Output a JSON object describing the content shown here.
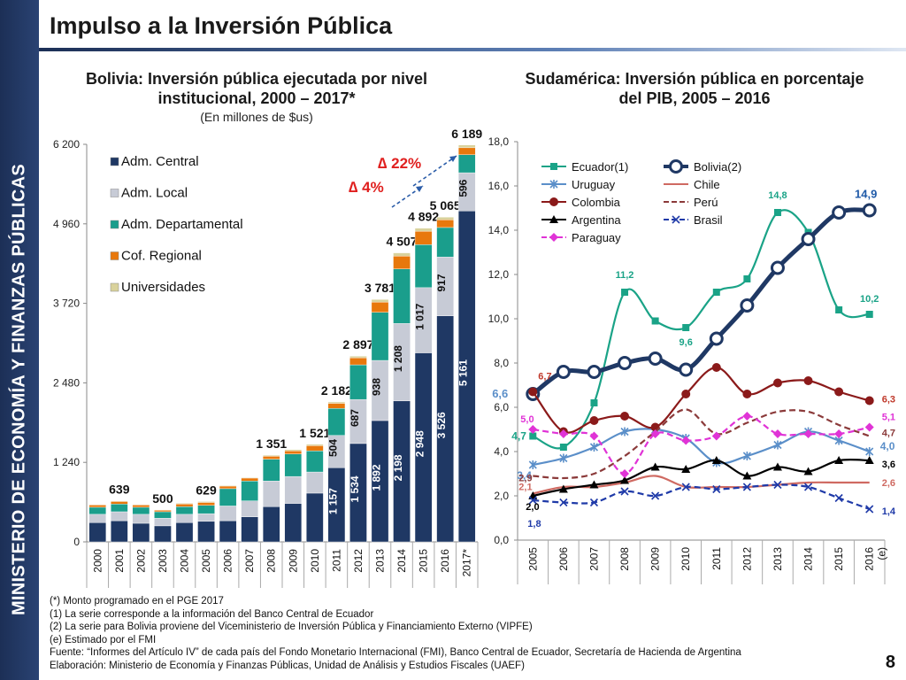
{
  "page": {
    "sidebar_text": "MINISTERIO DE ECONOMÍA Y FINANZAS PÚBLICAS",
    "title": "Impulso a la Inversión Pública",
    "page_number": "8"
  },
  "notes": [
    "(*) Monto programado en el PGE 2017",
    "(1)   La serie corresponde a la información del Banco Central de Ecuador",
    "(2)   La serie para Bolivia proviene del Viceministerio de Inversión Pública y Financiamiento Externo (VIPFE)",
    "(e) Estimado por el FMI",
    "Fuente: “Informes del Artículo IV” de cada país del Fondo Monetario Internacional (FMI), Banco Central de Ecuador, Secretaría de Hacienda de Argentina",
    "Elaboración: Ministerio de Economía y Finanzas Públicas, Unidad de Análisis y Estudios Fiscales (UAEF)"
  ],
  "chart_data": [
    {
      "type": "bar",
      "stacked": true,
      "title": "Bolivia: Inversión pública ejecutada por nivel institucional, 2000 – 2017*",
      "subtitle": "(En millones de $us)",
      "categories": [
        "2000",
        "2001",
        "2002",
        "2003",
        "2004",
        "2005",
        "2006",
        "2007",
        "2008",
        "2009",
        "2010",
        "2011",
        "2012",
        "2013",
        "2014",
        "2015",
        "2016",
        "2017*"
      ],
      "ylim": [
        0,
        6200
      ],
      "yticks": [
        "0",
        "1 240",
        "2 480",
        "3 720",
        "4 960",
        "6 200"
      ],
      "totals": [
        583,
        639,
        584,
        500,
        602,
        629,
        879,
        1005,
        1351,
        1439,
        1521,
        2182,
        2897,
        3781,
        4507,
        4892,
        5065,
        6189
      ],
      "total_labels": [
        null,
        "639",
        null,
        "500",
        null,
        "629",
        null,
        null,
        "1 351",
        null,
        "1 521",
        "2 182",
        "2 897",
        "3 781",
        "4 507",
        "4 892",
        "5 065",
        "6 189"
      ],
      "series": [
        {
          "name": "Adm. Central",
          "color": "#1f3864",
          "values": [
            300,
            330,
            290,
            250,
            300,
            320,
            330,
            390,
            550,
            600,
            760,
            1157,
            1534,
            1892,
            2198,
            2948,
            3526,
            5161
          ],
          "labels": [
            null,
            null,
            null,
            null,
            null,
            null,
            null,
            null,
            null,
            null,
            null,
            "1 157",
            "1 534",
            "1 892",
            "2 198",
            "2 948",
            "3 526",
            "5 161"
          ]
        },
        {
          "name": "Adm. Local",
          "color": "#c7cbd6",
          "values": [
            130,
            140,
            140,
            120,
            130,
            120,
            230,
            250,
            400,
            420,
            330,
            504,
            687,
            938,
            1208,
            1017,
            917,
            596
          ],
          "labels": [
            null,
            null,
            null,
            null,
            null,
            null,
            null,
            null,
            null,
            null,
            null,
            "504",
            "687",
            "938",
            "1 208",
            "1 017",
            "917",
            "596"
          ]
        },
        {
          "name": "Adm. Departamental",
          "color": "#1a9e8c",
          "values": [
            110,
            120,
            110,
            100,
            120,
            130,
            270,
            310,
            340,
            350,
            330,
            420,
            540,
            750,
            850,
            670,
            460,
            280
          ],
          "labels": []
        },
        {
          "name": "Cof. Regional",
          "color": "#e8780c",
          "values": [
            35,
            40,
            35,
            25,
            40,
            45,
            40,
            45,
            45,
            50,
            80,
            80,
            110,
            160,
            200,
            210,
            120,
            110
          ],
          "labels": []
        },
        {
          "name": "Universidades",
          "color": "#d9d29c",
          "values": [
            8,
            9,
            9,
            5,
            12,
            14,
            9,
            10,
            16,
            19,
            21,
            21,
            26,
            41,
            51,
            47,
            42,
            42
          ],
          "labels": []
        }
      ],
      "annotations": [
        "∆ 22%",
        "∆ 4%"
      ]
    },
    {
      "type": "line",
      "title": "Sudamérica: Inversión pública en porcentaje del PIB, 2005 – 2016",
      "x": [
        "2005",
        "2006",
        "2007",
        "2008",
        "2009",
        "2010",
        "2011",
        "2012",
        "2013",
        "2014",
        "2015",
        "2016 (e)"
      ],
      "ylim": [
        0,
        18
      ],
      "yticks": [
        "0,0",
        "2,0",
        "4,0",
        "6,0",
        "8,0",
        "10,0",
        "12,0",
        "14,0",
        "16,0",
        "18,0"
      ],
      "series": [
        {
          "name": "Ecuador(1)",
          "color": "#1aa387",
          "marker": "square",
          "values": [
            4.7,
            4.2,
            6.2,
            11.2,
            9.9,
            9.6,
            11.2,
            11.8,
            14.8,
            13.9,
            10.4,
            10.2
          ]
        },
        {
          "name": "Bolivia(2)",
          "color": "#1f3864",
          "marker": "circle",
          "values": [
            6.6,
            7.6,
            7.6,
            8.0,
            8.2,
            7.7,
            9.1,
            10.6,
            12.3,
            13.6,
            14.8,
            14.9
          ]
        },
        {
          "name": "Uruguay",
          "color": "#5b8fc9",
          "marker": "star",
          "values": [
            3.4,
            3.7,
            4.2,
            4.9,
            5.0,
            4.6,
            3.5,
            3.8,
            4.3,
            4.9,
            4.5,
            4.0
          ]
        },
        {
          "name": "Chile",
          "color": "#cf6a62",
          "marker": "none",
          "values": [
            2.1,
            2.4,
            2.4,
            2.6,
            2.9,
            2.4,
            2.4,
            2.4,
            2.5,
            2.6,
            2.6,
            2.6
          ]
        },
        {
          "name": "Colombia",
          "color": "#8b1a1a",
          "marker": "circle",
          "values": [
            6.7,
            4.9,
            5.4,
            5.6,
            5.1,
            6.6,
            7.8,
            6.6,
            7.1,
            7.2,
            6.7,
            6.3
          ]
        },
        {
          "name": "Perú",
          "color": "#8b3a3a",
          "marker": "none",
          "dashed": true,
          "values": [
            2.9,
            2.8,
            3.0,
            3.8,
            4.9,
            5.9,
            4.8,
            5.3,
            5.8,
            5.8,
            5.2,
            4.7
          ]
        },
        {
          "name": "Argentina",
          "color": "#000000",
          "marker": "triangle",
          "values": [
            2.0,
            2.3,
            2.5,
            2.7,
            3.3,
            3.2,
            3.6,
            2.9,
            3.3,
            3.1,
            3.6,
            3.6
          ]
        },
        {
          "name": "Brasil",
          "color": "#1f3aa8",
          "marker": "x",
          "dashed": true,
          "values": [
            1.8,
            1.7,
            1.7,
            2.2,
            2.0,
            2.4,
            2.3,
            2.4,
            2.5,
            2.4,
            1.9,
            1.4
          ]
        },
        {
          "name": "Paraguay",
          "color": "#e033d6",
          "marker": "diamond",
          "dashed": true,
          "values": [
            5.0,
            4.8,
            4.7,
            3.0,
            4.8,
            4.5,
            4.7,
            5.6,
            4.8,
            4.8,
            4.8,
            5.1
          ]
        }
      ],
      "point_labels": [
        {
          "text": "6,6",
          "color": "#5b8fc9",
          "series": "Bolivia(2)",
          "index": 0
        },
        {
          "text": "14,9",
          "color": "#1f5aa8",
          "series": "Bolivia(2)",
          "index": 11
        },
        {
          "text": "6,7",
          "color": "#c0392b",
          "series": "Colombia",
          "index": 0
        },
        {
          "text": "6,3",
          "color": "#c0392b",
          "series": "Colombia",
          "index": 11
        },
        {
          "text": "11,2",
          "color": "#1aa387",
          "series": "Ecuador(1)",
          "index": 3
        },
        {
          "text": "9,6",
          "color": "#1aa387",
          "series": "Ecuador(1)",
          "index": 5
        },
        {
          "text": "14,8",
          "color": "#1aa387",
          "series": "Ecuador(1)",
          "index": 8
        },
        {
          "text": "10,2",
          "color": "#1aa387",
          "series": "Ecuador(1)",
          "index": 11
        },
        {
          "text": "4,7",
          "color": "#1aa387",
          "series": "Ecuador(1)",
          "index": 0
        },
        {
          "text": "5,0",
          "color": "#e033d6",
          "series": "Paraguay",
          "index": 0
        },
        {
          "text": "5,1",
          "color": "#e033d6",
          "series": "Paraguay",
          "index": 11
        },
        {
          "text": "4,7",
          "color": "#8b3a3a",
          "series": "Perú",
          "index": 11
        },
        {
          "text": "3,4",
          "color": "#5b8fc9",
          "series": "Uruguay",
          "index": 0
        },
        {
          "text": "4,0",
          "color": "#5b8fc9",
          "series": "Uruguay",
          "index": 11
        },
        {
          "text": "2,9",
          "color": "#8b3a3a",
          "series": "Perú",
          "index": 0
        },
        {
          "text": "2,1",
          "color": "#cf6a62",
          "series": "Chile",
          "index": 0
        },
        {
          "text": "2,6",
          "color": "#cf6a62",
          "series": "Chile",
          "index": 11
        },
        {
          "text": "2,0",
          "color": "#000000",
          "series": "Argentina",
          "index": 0
        },
        {
          "text": "3,6",
          "color": "#000000",
          "series": "Argentina",
          "index": 11
        },
        {
          "text": "1,8",
          "color": "#1f3aa8",
          "series": "Brasil",
          "index": 0
        },
        {
          "text": "1,4",
          "color": "#1f3aa8",
          "series": "Brasil",
          "index": 11
        }
      ]
    }
  ]
}
